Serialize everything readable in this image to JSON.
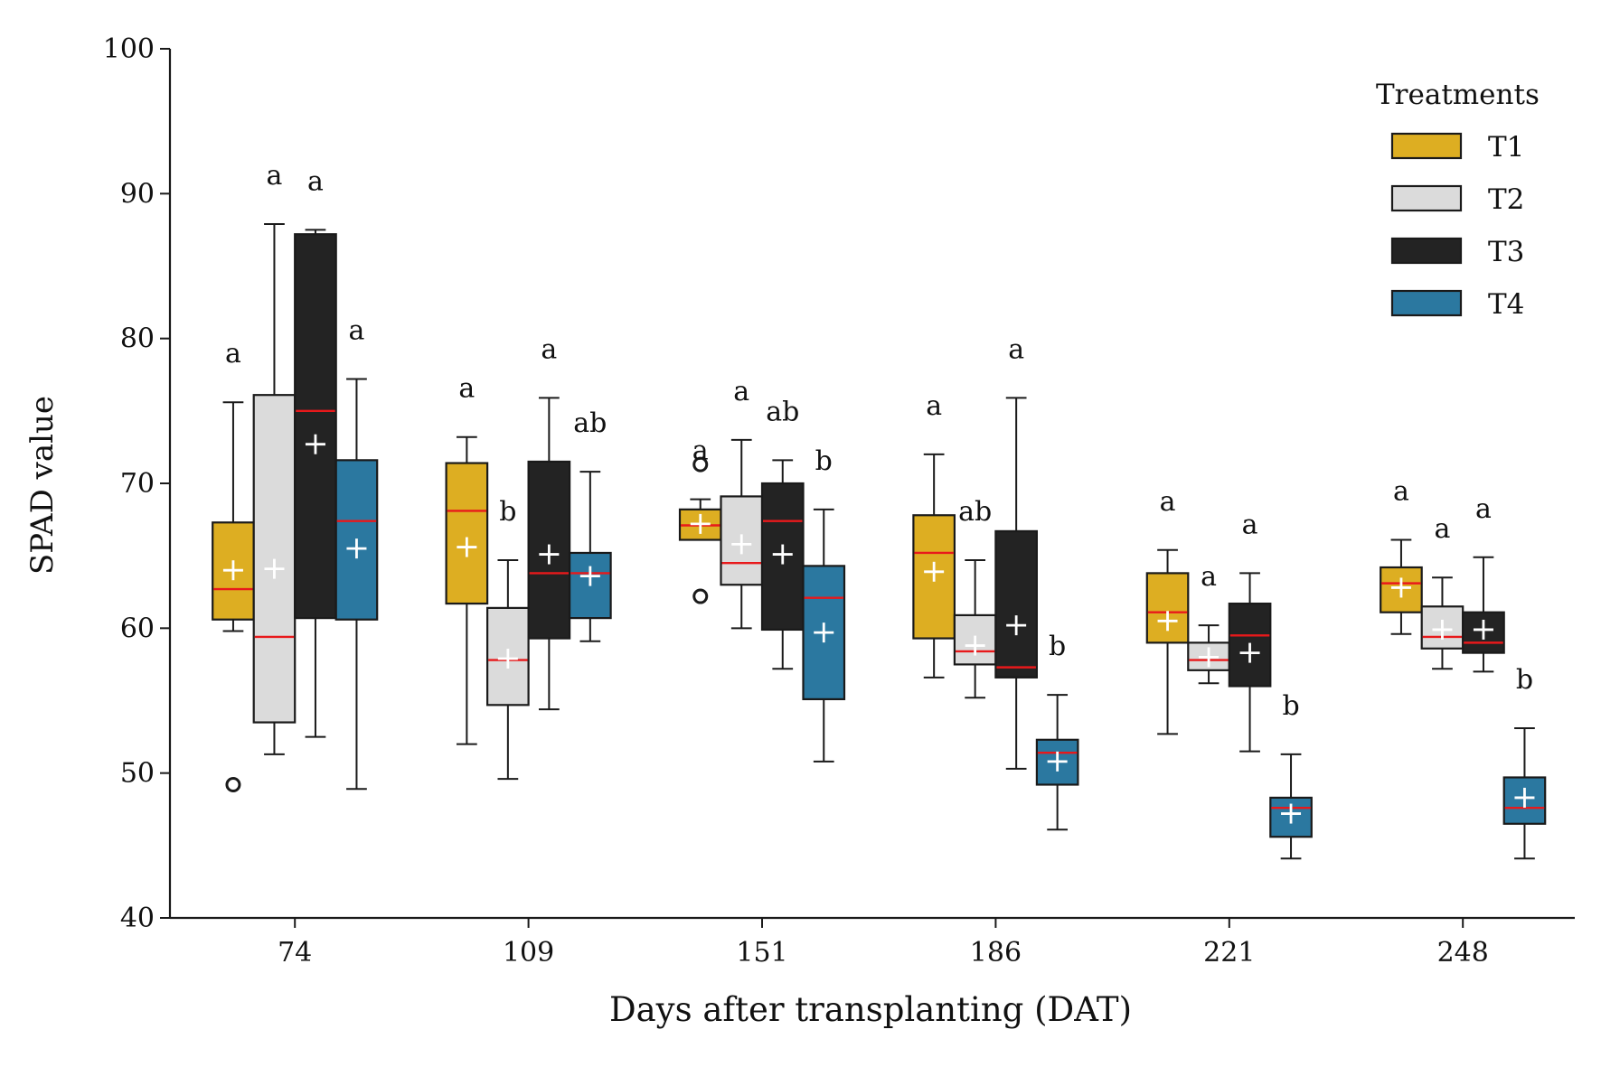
{
  "chart_data": {
    "type": "boxplot",
    "xlabel": "Days after transplanting (DAT)",
    "ylabel": "SPAD value",
    "ylim": [
      40,
      100
    ],
    "yticks": [
      40,
      50,
      60,
      70,
      80,
      90,
      100
    ],
    "categories": [
      "74",
      "109",
      "151",
      "186",
      "221",
      "248"
    ],
    "legend": {
      "title": "Treatments",
      "placement": "top-right",
      "entries": [
        "T1",
        "T2",
        "T3",
        "T4"
      ]
    },
    "colors": {
      "T1": "#DDAE22",
      "T2": "#DBDBDB",
      "T3": "#232323",
      "T4": "#2B78A0",
      "median": "#E8191B",
      "mean_marker": "#FFFFFF",
      "edge": "#1A1A1A"
    },
    "series": [
      {
        "name": "T1",
        "boxes": [
          {
            "category": "74",
            "whislo": 59.8,
            "q1": 60.6,
            "med": 62.7,
            "q3": 67.3,
            "whishi": 75.6,
            "mean": 64.0,
            "outliers": [
              49.2
            ],
            "letter": "a"
          },
          {
            "category": "109",
            "whislo": 52.0,
            "q1": 61.7,
            "med": 68.1,
            "q3": 71.4,
            "whishi": 73.2,
            "mean": 65.6,
            "outliers": [],
            "letter": "a"
          },
          {
            "category": "151",
            "whislo": 66.1,
            "q1": 66.1,
            "med": 67.1,
            "q3": 68.2,
            "whishi": 68.9,
            "mean": 67.2,
            "outliers": [
              71.3,
              62.2
            ],
            "letter": "a"
          },
          {
            "category": "186",
            "whislo": 56.6,
            "q1": 59.3,
            "med": 65.2,
            "q3": 67.8,
            "whishi": 72.0,
            "mean": 63.9,
            "outliers": [],
            "letter": "a"
          },
          {
            "category": "221",
            "whislo": 52.7,
            "q1": 59.0,
            "med": 61.1,
            "q3": 63.8,
            "whishi": 65.4,
            "mean": 60.5,
            "outliers": [],
            "letter": "a"
          },
          {
            "category": "248",
            "whislo": 59.6,
            "q1": 61.1,
            "med": 63.1,
            "q3": 64.2,
            "whishi": 66.1,
            "mean": 62.8,
            "outliers": [],
            "letter": "a"
          }
        ]
      },
      {
        "name": "T2",
        "boxes": [
          {
            "category": "74",
            "whislo": 51.3,
            "q1": 53.5,
            "med": 59.4,
            "q3": 76.1,
            "whishi": 87.9,
            "mean": 64.1,
            "outliers": [],
            "letter": "a"
          },
          {
            "category": "109",
            "whislo": 49.6,
            "q1": 54.7,
            "med": 57.8,
            "q3": 61.4,
            "whishi": 64.7,
            "mean": 57.9,
            "outliers": [],
            "letter": "b"
          },
          {
            "category": "151",
            "whislo": 60.0,
            "q1": 63.0,
            "med": 64.5,
            "q3": 69.1,
            "whishi": 73.0,
            "mean": 65.8,
            "outliers": [],
            "letter": "a"
          },
          {
            "category": "186",
            "whislo": 55.2,
            "q1": 57.5,
            "med": 58.4,
            "q3": 60.9,
            "whishi": 64.7,
            "mean": 58.8,
            "outliers": [],
            "letter": "ab"
          },
          {
            "category": "221",
            "whislo": 56.2,
            "q1": 57.1,
            "med": 57.8,
            "q3": 59.0,
            "whishi": 60.2,
            "mean": 58.0,
            "outliers": [],
            "letter": "a"
          },
          {
            "category": "248",
            "whislo": 57.2,
            "q1": 58.6,
            "med": 59.4,
            "q3": 61.5,
            "whishi": 63.5,
            "mean": 59.9,
            "outliers": [],
            "letter": "a"
          }
        ]
      },
      {
        "name": "T3",
        "boxes": [
          {
            "category": "74",
            "whislo": 52.5,
            "q1": 60.7,
            "med": 75.0,
            "q3": 87.2,
            "whishi": 87.5,
            "mean": 72.7,
            "outliers": [],
            "letter": "a"
          },
          {
            "category": "109",
            "whislo": 54.4,
            "q1": 59.3,
            "med": 63.8,
            "q3": 71.5,
            "whishi": 75.9,
            "mean": 65.1,
            "outliers": [],
            "letter": "a"
          },
          {
            "category": "151",
            "whislo": 57.2,
            "q1": 59.9,
            "med": 67.4,
            "q3": 70.0,
            "whishi": 71.6,
            "mean": 65.1,
            "outliers": [],
            "letter": "ab"
          },
          {
            "category": "186",
            "whislo": 50.3,
            "q1": 56.6,
            "med": 57.3,
            "q3": 66.7,
            "whishi": 75.9,
            "mean": 60.2,
            "outliers": [],
            "letter": "a"
          },
          {
            "category": "221",
            "whislo": 51.5,
            "q1": 56.0,
            "med": 59.5,
            "q3": 61.7,
            "whishi": 63.8,
            "mean": 58.3,
            "outliers": [],
            "letter": "a"
          },
          {
            "category": "248",
            "whislo": 57.0,
            "q1": 58.3,
            "med": 59.0,
            "q3": 61.1,
            "whishi": 64.9,
            "mean": 59.9,
            "outliers": [],
            "letter": "a"
          }
        ]
      },
      {
        "name": "T4",
        "boxes": [
          {
            "category": "74",
            "whislo": 48.9,
            "q1": 60.6,
            "med": 67.4,
            "q3": 71.6,
            "whishi": 77.2,
            "mean": 65.5,
            "outliers": [],
            "letter": "a"
          },
          {
            "category": "109",
            "whislo": 59.1,
            "q1": 60.7,
            "med": 63.8,
            "q3": 65.2,
            "whishi": 70.8,
            "mean": 63.6,
            "outliers": [],
            "letter": "ab"
          },
          {
            "category": "151",
            "whislo": 50.8,
            "q1": 55.1,
            "med": 62.1,
            "q3": 64.3,
            "whishi": 68.2,
            "mean": 59.7,
            "outliers": [],
            "letter": "b"
          },
          {
            "category": "186",
            "whislo": 46.1,
            "q1": 49.2,
            "med": 51.4,
            "q3": 52.3,
            "whishi": 55.4,
            "mean": 50.8,
            "outliers": [],
            "letter": "b"
          },
          {
            "category": "221",
            "whislo": 44.1,
            "q1": 45.6,
            "med": 47.6,
            "q3": 48.3,
            "whishi": 51.3,
            "mean": 47.2,
            "outliers": [],
            "letter": "b"
          },
          {
            "category": "248",
            "whislo": 44.1,
            "q1": 46.5,
            "med": 47.6,
            "q3": 49.7,
            "whishi": 53.1,
            "mean": 48.3,
            "outliers": [],
            "letter": "b"
          }
        ]
      }
    ]
  }
}
